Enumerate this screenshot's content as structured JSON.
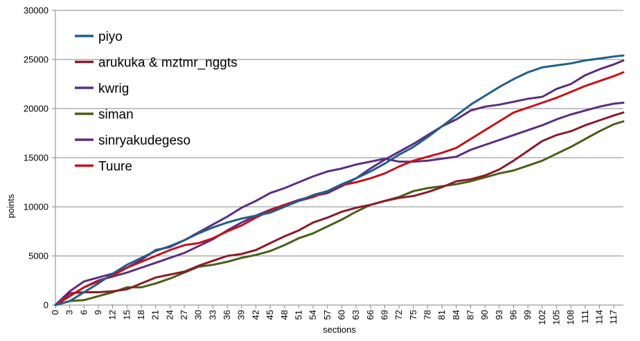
{
  "chart_data": {
    "type": "line",
    "title": "",
    "xlabel": "sections",
    "ylabel": "points",
    "xlim": [
      0,
      119
    ],
    "ylim": [
      0,
      30000
    ],
    "x_ticks": [
      0,
      3,
      6,
      9,
      12,
      15,
      18,
      21,
      24,
      27,
      30,
      33,
      36,
      39,
      42,
      45,
      48,
      51,
      54,
      57,
      60,
      63,
      66,
      69,
      72,
      75,
      78,
      81,
      84,
      87,
      90,
      93,
      96,
      99,
      102,
      105,
      108,
      111,
      114,
      117
    ],
    "y_ticks": [
      0,
      5000,
      10000,
      15000,
      20000,
      25000,
      30000
    ],
    "grid": "horizontal",
    "legend_position": "top-left",
    "series": [
      {
        "name": "piyo",
        "color": "#1f5f8b",
        "x": [
          0,
          3,
          6,
          9,
          12,
          15,
          18,
          21,
          24,
          27,
          30,
          33,
          36,
          39,
          42,
          45,
          48,
          51,
          54,
          57,
          60,
          63,
          66,
          69,
          72,
          75,
          78,
          81,
          84,
          87,
          90,
          93,
          96,
          99,
          102,
          105,
          108,
          111,
          114,
          117,
          119
        ],
        "y": [
          0,
          400,
          1300,
          2200,
          3200,
          4100,
          4800,
          5500,
          6000,
          6600,
          7300,
          7900,
          8400,
          8800,
          9100,
          9400,
          10000,
          10600,
          11200,
          11600,
          12300,
          12900,
          13600,
          14400,
          15300,
          16100,
          17100,
          18200,
          19300,
          20400,
          21300,
          22200,
          23000,
          23700,
          24200,
          24400,
          24600,
          24900,
          25100,
          25300,
          25400
        ]
      },
      {
        "name": "arukuka & mztmr_nggts",
        "color": "#8b1a2b",
        "x": [
          0,
          3,
          6,
          9,
          12,
          15,
          18,
          21,
          24,
          27,
          30,
          33,
          36,
          39,
          42,
          45,
          48,
          51,
          54,
          57,
          60,
          63,
          66,
          69,
          72,
          75,
          78,
          81,
          84,
          87,
          90,
          93,
          96,
          99,
          102,
          105,
          108,
          111,
          114,
          117,
          119
        ],
        "y": [
          0,
          1200,
          1300,
          1300,
          1400,
          1600,
          2200,
          2800,
          3100,
          3400,
          4000,
          4500,
          5000,
          5200,
          5600,
          6300,
          7000,
          7600,
          8400,
          8900,
          9500,
          9900,
          10200,
          10600,
          10900,
          11100,
          11500,
          12000,
          12600,
          12800,
          13200,
          13800,
          14700,
          15700,
          16700,
          17300,
          17700,
          18300,
          18800,
          19300,
          19600
        ]
      },
      {
        "name": "kwrig",
        "color": "#5b2d82",
        "x": [
          0,
          3,
          6,
          9,
          12,
          15,
          18,
          21,
          24,
          27,
          30,
          33,
          36,
          39,
          42,
          45,
          48,
          51,
          54,
          57,
          60,
          63,
          66,
          69,
          72,
          75,
          78,
          81,
          84,
          87,
          90,
          93,
          96,
          99,
          102,
          105,
          108,
          111,
          114,
          117,
          119
        ],
        "y": [
          0,
          900,
          1800,
          2500,
          2900,
          3300,
          3800,
          4300,
          4800,
          5300,
          6000,
          6700,
          7600,
          8400,
          9100,
          9700,
          10200,
          10700,
          11100,
          11400,
          12100,
          12900,
          13900,
          14800,
          15600,
          16400,
          17300,
          18200,
          18900,
          19800,
          20200,
          20400,
          20700,
          21000,
          21200,
          22000,
          22500,
          23400,
          24000,
          24500,
          24900
        ]
      },
      {
        "name": "siman",
        "color": "#4a5e14",
        "x": [
          0,
          3,
          6,
          9,
          12,
          15,
          18,
          21,
          24,
          27,
          30,
          33,
          36,
          39,
          42,
          45,
          48,
          51,
          54,
          57,
          60,
          63,
          66,
          69,
          72,
          75,
          78,
          81,
          84,
          87,
          90,
          93,
          96,
          99,
          102,
          105,
          108,
          111,
          114,
          117,
          119
        ],
        "y": [
          0,
          400,
          500,
          900,
          1300,
          1800,
          1800,
          2200,
          2700,
          3300,
          3900,
          4100,
          4400,
          4800,
          5100,
          5500,
          6100,
          6800,
          7300,
          8000,
          8700,
          9500,
          10200,
          10600,
          11000,
          11600,
          11900,
          12100,
          12300,
          12600,
          13000,
          13400,
          13700,
          14200,
          14700,
          15400,
          16100,
          16900,
          17700,
          18400,
          18700
        ]
      },
      {
        "name": "sinryakudegeso",
        "color": "#5b2d82",
        "x": [
          0,
          3,
          6,
          9,
          12,
          15,
          18,
          21,
          24,
          27,
          30,
          33,
          36,
          39,
          42,
          45,
          48,
          51,
          54,
          57,
          60,
          63,
          66,
          69,
          72,
          75,
          78,
          81,
          84,
          87,
          90,
          93,
          96,
          99,
          102,
          105,
          108,
          111,
          114,
          117,
          119
        ],
        "y": [
          0,
          1400,
          2400,
          2800,
          3200,
          3800,
          4600,
          5600,
          5900,
          6600,
          7400,
          8200,
          9000,
          9900,
          10600,
          11400,
          11900,
          12500,
          13100,
          13600,
          13900,
          14300,
          14600,
          14900,
          14600,
          14600,
          14700,
          14900,
          15100,
          15800,
          16300,
          16800,
          17300,
          17800,
          18300,
          18900,
          19400,
          19800,
          20200,
          20500,
          20600
        ]
      },
      {
        "name": "Tuure",
        "color": "#c8101a",
        "x": [
          0,
          3,
          6,
          9,
          12,
          15,
          18,
          21,
          24,
          27,
          30,
          33,
          36,
          39,
          42,
          45,
          48,
          51,
          54,
          57,
          60,
          63,
          66,
          69,
          72,
          75,
          78,
          81,
          84,
          87,
          90,
          93,
          96,
          99,
          102,
          105,
          108,
          111,
          114,
          117,
          119
        ],
        "y": [
          0,
          900,
          1800,
          2400,
          3000,
          3800,
          4400,
          5000,
          5600,
          6100,
          6300,
          6800,
          7500,
          8100,
          8900,
          9600,
          10200,
          10600,
          11000,
          11600,
          12200,
          12500,
          12900,
          13400,
          14100,
          14700,
          15100,
          15500,
          16000,
          16900,
          17800,
          18700,
          19600,
          20100,
          20600,
          21100,
          21700,
          22300,
          22800,
          23300,
          23700
        ]
      }
    ]
  }
}
